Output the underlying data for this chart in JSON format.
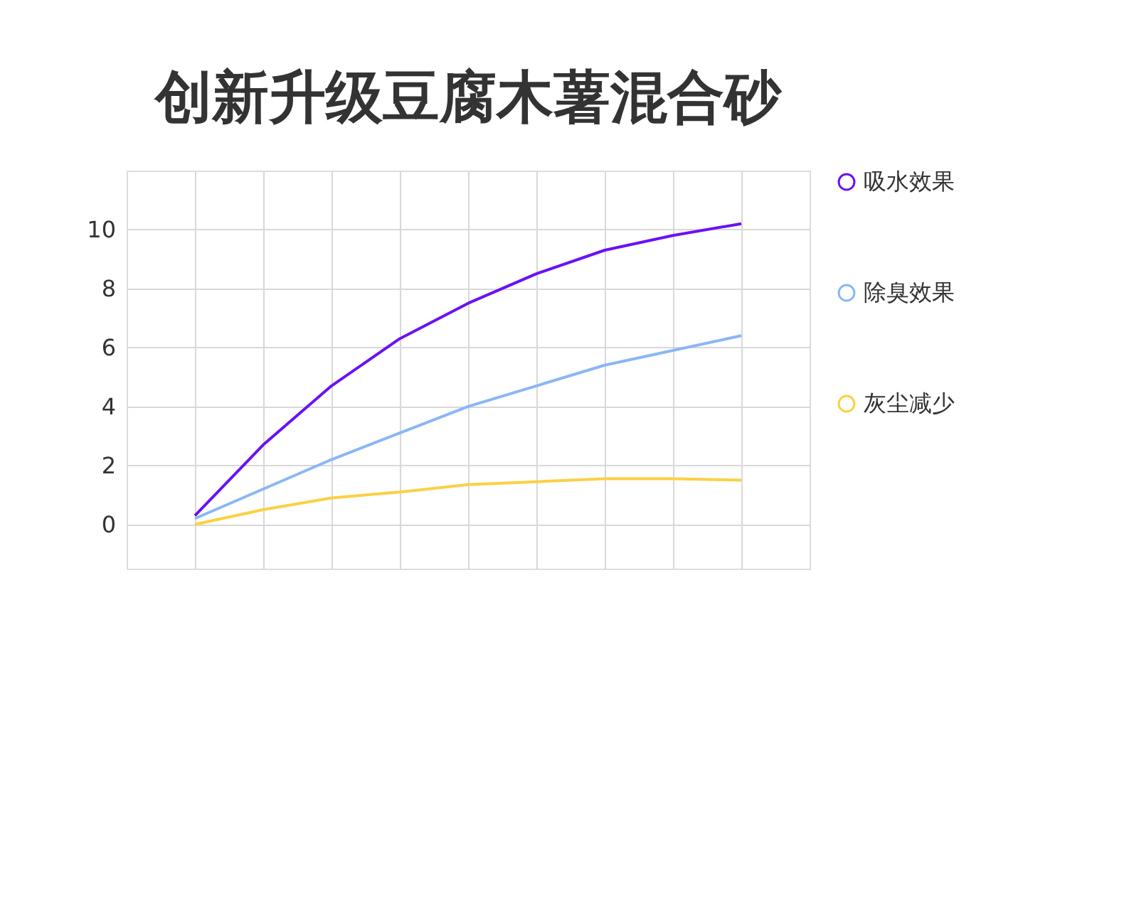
{
  "chart_data": {
    "type": "line",
    "title": "创新升级豆腐木薯混合砂",
    "categories": [
      null,
      null,
      null,
      null,
      null,
      null,
      null,
      null,
      null
    ],
    "ylim": [
      -1.5,
      12
    ],
    "yticks": [
      0,
      2,
      4,
      6,
      8,
      10
    ],
    "tick_labels": "y",
    "grid": true,
    "legend": "right",
    "series": [
      {
        "name": "吸水效果",
        "color": "#6a11f5",
        "values": [
          0.3,
          2.7,
          4.7,
          6.3,
          7.5,
          8.5,
          9.3,
          9.8,
          10.2
        ]
      },
      {
        "name": "除臭效果",
        "color": "#8ab6f5",
        "values": [
          0.2,
          1.2,
          2.2,
          3.1,
          4.0,
          4.7,
          5.4,
          5.9,
          6.4
        ]
      },
      {
        "name": "灰尘减少",
        "color": "#fbd043",
        "values": [
          0,
          0.5,
          0.9,
          1.1,
          1.35,
          1.45,
          1.55,
          1.55,
          1.5
        ]
      }
    ]
  }
}
